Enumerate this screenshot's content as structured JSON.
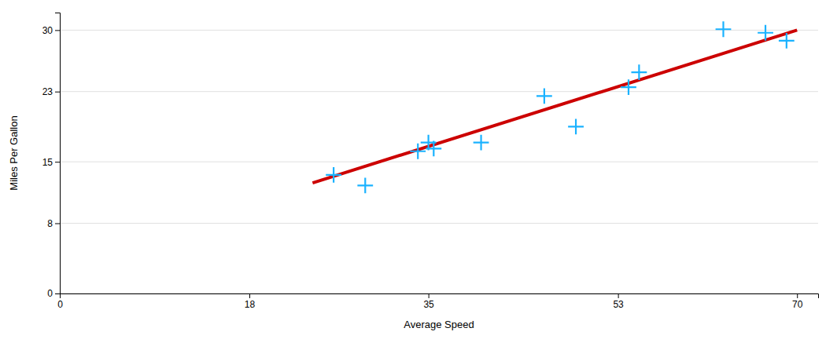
{
  "chart_data": {
    "type": "scatter",
    "xlabel": "Average Speed",
    "ylabel": "Miles Per Gallon",
    "xlim": [
      0,
      72
    ],
    "ylim": [
      0,
      32
    ],
    "xticks": [
      0,
      18,
      35,
      53,
      70
    ],
    "yticks": [
      0,
      8,
      15,
      23,
      30
    ],
    "grid": true,
    "series": [
      {
        "type": "scatter",
        "marker": "plus",
        "color": "#1ab2ff",
        "x": [
          26,
          29,
          34,
          35,
          35.5,
          40,
          46,
          49,
          54,
          55,
          63,
          67,
          69
        ],
        "values": [
          13.5,
          12.3,
          16.2,
          17.2,
          16.5,
          17.2,
          22.5,
          19.0,
          23.5,
          25.2,
          30.1,
          29.7,
          28.8
        ]
      },
      {
        "type": "line",
        "color": "#cc0000",
        "x": [
          24,
          70
        ],
        "values": [
          12.6,
          30.0
        ]
      }
    ]
  }
}
